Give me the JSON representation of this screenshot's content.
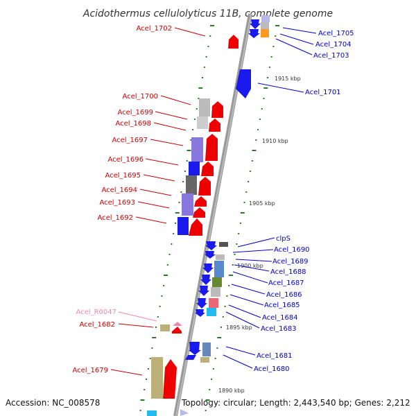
{
  "title": "Acidothermus cellulolyticus 11B, complete genome",
  "footer": {
    "accession": "Accession: NC_008578",
    "topology": "Topology: circular; Length: 2,443,540 bp; Genes: 2,212"
  },
  "colors": {
    "backbone": "#888888",
    "forward_label": "#cc0000",
    "reverse_label": "#0000cc",
    "rna_label": "#ee88aa",
    "tick": "#2a7a2a"
  },
  "kbp_marks": [
    {
      "label": "1915 kbp"
    },
    {
      "label": "1910 kbp"
    },
    {
      "label": "1905 kbp"
    },
    {
      "label": "1900 kbp"
    },
    {
      "label": "1895 kbp"
    },
    {
      "label": "1890 kbp"
    }
  ],
  "left_labels": [
    {
      "text": "Acel_1702"
    },
    {
      "text": "Acel_1700"
    },
    {
      "text": "Acel_1699"
    },
    {
      "text": "Acel_1698"
    },
    {
      "text": "Acel_1697"
    },
    {
      "text": "Acel_1696"
    },
    {
      "text": "Acel_1695"
    },
    {
      "text": "Acel_1694"
    },
    {
      "text": "Acel_1693"
    },
    {
      "text": "Acel_1692"
    },
    {
      "text": "Acel_R0047"
    },
    {
      "text": "Acel_1682"
    },
    {
      "text": "Acel_1679"
    }
  ],
  "right_labels": [
    {
      "text": "Acel_1705"
    },
    {
      "text": "Acel_1704"
    },
    {
      "text": "Acel_1703"
    },
    {
      "text": "Acel_1701"
    },
    {
      "text": "clpS"
    },
    {
      "text": "Acel_1690"
    },
    {
      "text": "Acel_1689"
    },
    {
      "text": "Acel_1688"
    },
    {
      "text": "Acel_1687"
    },
    {
      "text": "Acel_1686"
    },
    {
      "text": "Acel_1685"
    },
    {
      "text": "Acel_1684"
    },
    {
      "text": "Acel_1683"
    },
    {
      "text": "Acel_1681"
    },
    {
      "text": "Acel_1680"
    }
  ]
}
